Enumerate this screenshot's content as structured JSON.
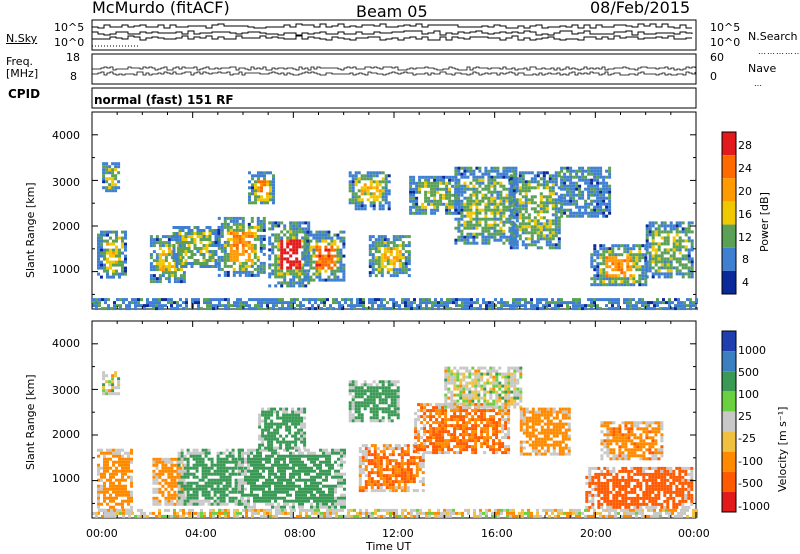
{
  "header": {
    "station": "McMurdo (fitACF)",
    "beam": "Beam 05",
    "date": "08/Feb/2015"
  },
  "noise_panel": {
    "left_label": "N.Sky",
    "left_ticks": [
      "10^5",
      "10^0"
    ],
    "right_label": "N.Search",
    "right_ticks": [
      "10^5",
      "10^0"
    ]
  },
  "freq_panel": {
    "left_label_1": "Freq.",
    "left_label_2": "[MHz]",
    "left_ticks": [
      "18",
      "8"
    ],
    "right_label": "Nave",
    "right_ticks": [
      "60",
      "0"
    ]
  },
  "cpid_panel": {
    "label": "CPID",
    "text": "normal (fast) 151 RF"
  },
  "chart_data": [
    {
      "type": "heatmap",
      "panel": "power",
      "xlabel": "",
      "ylabel": "Slant Range [km]",
      "y_ticks": [
        "1000",
        "2000",
        "3000",
        "4000"
      ],
      "ylim": [
        180,
        4500
      ],
      "xlim": [
        0,
        24
      ],
      "colorbar_label": "Power [dB]",
      "colorbar_ticks": [
        "28",
        "24",
        "20",
        "16",
        "12",
        "8",
        "4"
      ],
      "colorbar_colors": [
        "#e31a1c",
        "#ff6a00",
        "#ff9a00",
        "#f0c800",
        "#5aa055",
        "#3f7fd2",
        "#0a2a9a"
      ],
      "echo_regions": [
        {
          "t0": 0.2,
          "t1": 1.3,
          "r0": 900,
          "r1": 1900,
          "level": 16
        },
        {
          "t0": 0.4,
          "t1": 1.0,
          "r0": 2800,
          "r1": 3400,
          "level": 12
        },
        {
          "t0": 2.3,
          "t1": 3.7,
          "r0": 800,
          "r1": 1800,
          "level": 16
        },
        {
          "t0": 3.2,
          "t1": 5.0,
          "r0": 1100,
          "r1": 2000,
          "level": 12
        },
        {
          "t0": 5.0,
          "t1": 6.8,
          "r0": 900,
          "r1": 2200,
          "level": 20
        },
        {
          "t0": 6.2,
          "t1": 7.2,
          "r0": 2500,
          "r1": 3200,
          "level": 20
        },
        {
          "t0": 7.0,
          "t1": 8.6,
          "r0": 700,
          "r1": 2100,
          "level": 28
        },
        {
          "t0": 8.4,
          "t1": 10.0,
          "r0": 800,
          "r1": 1900,
          "level": 24
        },
        {
          "t0": 10.2,
          "t1": 11.8,
          "r0": 2400,
          "r1": 3200,
          "level": 16
        },
        {
          "t0": 11.0,
          "t1": 12.6,
          "r0": 900,
          "r1": 1800,
          "level": 16
        },
        {
          "t0": 12.6,
          "t1": 14.6,
          "r0": 2300,
          "r1": 3100,
          "level": 12
        },
        {
          "t0": 14.4,
          "t1": 16.8,
          "r0": 1600,
          "r1": 3300,
          "level": 12
        },
        {
          "t0": 16.6,
          "t1": 18.6,
          "r0": 1500,
          "r1": 3200,
          "level": 12
        },
        {
          "t0": 18.6,
          "t1": 20.6,
          "r0": 2200,
          "r1": 3300,
          "level": 8
        },
        {
          "t0": 19.8,
          "t1": 22.0,
          "r0": 700,
          "r1": 1600,
          "level": 20
        },
        {
          "t0": 22.0,
          "t1": 23.8,
          "r0": 900,
          "r1": 2100,
          "level": 12
        }
      ],
      "near_range_band": {
        "t0": 0,
        "t1": 24,
        "r0": 200,
        "r1": 420,
        "level": 8
      }
    },
    {
      "type": "heatmap",
      "panel": "velocity",
      "xlabel": "Time UT",
      "ylabel": "Slant Range [km]",
      "x_ticks": [
        "00:00",
        "04:00",
        "08:00",
        "12:00",
        "16:00",
        "20:00",
        "00:00"
      ],
      "y_ticks": [
        "1000",
        "2000",
        "3000",
        "4000"
      ],
      "ylim": [
        180,
        4500
      ],
      "xlim": [
        0,
        24
      ],
      "colorbar_label": "Velocity [m s⁻¹]",
      "colorbar_ticks": [
        "1000",
        "500",
        "100",
        "25",
        "-25",
        "-100",
        "-500",
        "-1000"
      ],
      "colorbar_colors": [
        "#1f3fb0",
        "#3a7fc0",
        "#3a9a55",
        "#6ad040",
        "#c8c8c8",
        "#f0c040",
        "#ff8a00",
        "#ff5a00",
        "#e31a1c"
      ],
      "echo_regions": [
        {
          "t0": 0.2,
          "t1": 1.6,
          "r0": 300,
          "r1": 1700,
          "velocity": -200
        },
        {
          "t0": 0.4,
          "t1": 1.0,
          "r0": 2900,
          "r1": 3400,
          "velocity": 0
        },
        {
          "t0": 2.4,
          "t1": 3.6,
          "r0": 500,
          "r1": 1500,
          "velocity": -150
        },
        {
          "t0": 3.4,
          "t1": 6.0,
          "r0": 500,
          "r1": 1700,
          "velocity": 200
        },
        {
          "t0": 5.8,
          "t1": 10.0,
          "r0": 400,
          "r1": 1700,
          "velocity": 200
        },
        {
          "t0": 6.6,
          "t1": 8.4,
          "r0": 1700,
          "r1": 2600,
          "velocity": 150
        },
        {
          "t0": 10.2,
          "t1": 12.2,
          "r0": 2300,
          "r1": 3200,
          "velocity": 150
        },
        {
          "t0": 10.6,
          "t1": 13.2,
          "r0": 800,
          "r1": 1800,
          "velocity": -300
        },
        {
          "t0": 12.8,
          "t1": 16.6,
          "r0": 1600,
          "r1": 2700,
          "velocity": -300
        },
        {
          "t0": 14.0,
          "t1": 17.0,
          "r0": 2600,
          "r1": 3500,
          "velocity": 0
        },
        {
          "t0": 17.0,
          "t1": 19.0,
          "r0": 1600,
          "r1": 2600,
          "velocity": -200
        },
        {
          "t0": 19.6,
          "t1": 23.8,
          "r0": 400,
          "r1": 1300,
          "velocity": -400
        },
        {
          "t0": 20.2,
          "t1": 22.6,
          "r0": 1500,
          "r1": 2300,
          "velocity": -250
        }
      ],
      "near_range_band": {
        "t0": 0,
        "t1": 24,
        "r0": 200,
        "r1": 380,
        "velocity": -25
      }
    }
  ]
}
